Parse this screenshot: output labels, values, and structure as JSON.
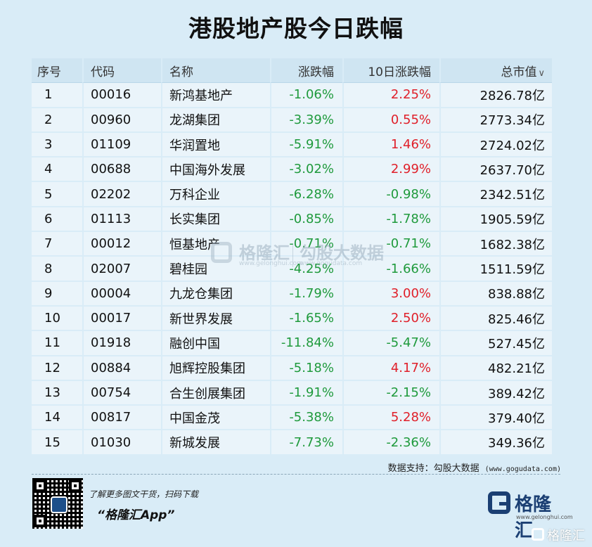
{
  "title": "港股地产股今日跌幅",
  "table": {
    "headers": {
      "seq": "序号",
      "code": "代码",
      "name": "名称",
      "change": "涨跌幅",
      "change10": "10日涨跌幅",
      "market_cap": "总市值",
      "sort_icon": "∨"
    },
    "rows": [
      {
        "seq": "1",
        "code": "00016",
        "name": "新鸿基地产",
        "change": "-1.06%",
        "change10": "2.25%",
        "market_cap": "2826.78亿"
      },
      {
        "seq": "2",
        "code": "00960",
        "name": "龙湖集团",
        "change": "-3.39%",
        "change10": "0.55%",
        "market_cap": "2773.34亿"
      },
      {
        "seq": "3",
        "code": "01109",
        "name": "华润置地",
        "change": "-5.91%",
        "change10": "1.46%",
        "market_cap": "2724.02亿"
      },
      {
        "seq": "4",
        "code": "00688",
        "name": "中国海外发展",
        "change": "-3.02%",
        "change10": "2.99%",
        "market_cap": "2637.70亿"
      },
      {
        "seq": "5",
        "code": "02202",
        "name": "万科企业",
        "change": "-6.28%",
        "change10": "-0.98%",
        "market_cap": "2342.51亿"
      },
      {
        "seq": "6",
        "code": "01113",
        "name": "长实集团",
        "change": "-0.85%",
        "change10": "-1.78%",
        "market_cap": "1905.59亿"
      },
      {
        "seq": "7",
        "code": "00012",
        "name": "恒基地产",
        "change": "-0.71%",
        "change10": "-0.71%",
        "market_cap": "1682.38亿"
      },
      {
        "seq": "8",
        "code": "02007",
        "name": "碧桂园",
        "change": "-4.25%",
        "change10": "-1.66%",
        "market_cap": "1511.59亿"
      },
      {
        "seq": "9",
        "code": "00004",
        "name": "九龙仓集团",
        "change": "-1.79%",
        "change10": "3.00%",
        "market_cap": "838.88亿"
      },
      {
        "seq": "10",
        "code": "00017",
        "name": "新世界发展",
        "change": "-1.65%",
        "change10": "2.50%",
        "market_cap": "825.46亿"
      },
      {
        "seq": "11",
        "code": "01918",
        "name": "融创中国",
        "change": "-11.84%",
        "change10": "-5.47%",
        "market_cap": "527.45亿"
      },
      {
        "seq": "12",
        "code": "00884",
        "name": "旭辉控股集团",
        "change": "-5.18%",
        "change10": "4.17%",
        "market_cap": "482.21亿"
      },
      {
        "seq": "13",
        "code": "00754",
        "name": "合生创展集团",
        "change": "-1.91%",
        "change10": "-2.15%",
        "market_cap": "389.42亿"
      },
      {
        "seq": "14",
        "code": "00817",
        "name": "中国金茂",
        "change": "-5.38%",
        "change10": "5.28%",
        "market_cap": "379.40亿"
      },
      {
        "seq": "15",
        "code": "01030",
        "name": "新城发展",
        "change": "-7.73%",
        "change10": "-2.36%",
        "market_cap": "349.36亿"
      }
    ]
  },
  "watermark": {
    "brand": "格隆汇",
    "brand_url": "www.gelonghui.com",
    "sub_brand": "勾股大数据",
    "sub_url": "www.gogudata.com"
  },
  "source": {
    "label": "数据支持：勾股大数据",
    "url": "(www.gogudata.com)"
  },
  "footer": {
    "promo": "了解更多图文干货，扫码下载",
    "app_name": "“格隆汇App”",
    "logo_text": "格隆汇",
    "logo_url": "www.gelonghui.com",
    "corner_text": "格隆汇"
  },
  "colors": {
    "background": "#d9ecf7",
    "negative": "#1f9a3c",
    "positive": "#e0202a",
    "brand": "#1b3f73"
  }
}
